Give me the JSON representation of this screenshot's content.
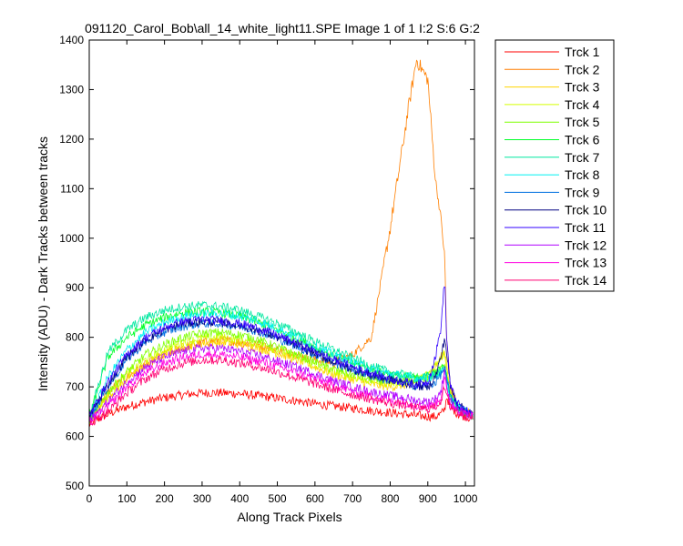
{
  "chart_data": {
    "type": "line",
    "title": "091120_Carol_Bob\\all_14_white_light11.SPE  Image 1 of 1  I:2  S:6  G:2",
    "xlabel": "Along Track Pixels",
    "ylabel": "Intensity (ADU) - Dark Tracks between tracks",
    "xlim": [
      0,
      1024
    ],
    "ylim": [
      500,
      1400
    ],
    "xticks": [
      0,
      100,
      200,
      300,
      400,
      500,
      600,
      700,
      800,
      900,
      1000
    ],
    "yticks": [
      500,
      600,
      700,
      800,
      900,
      1000,
      1100,
      1200,
      1300,
      1400
    ],
    "grid": false,
    "legend_position": "outside-right",
    "x": [
      0,
      50,
      100,
      150,
      200,
      250,
      300,
      350,
      400,
      450,
      500,
      550,
      600,
      650,
      700,
      750,
      800,
      850,
      870,
      900,
      920,
      935,
      945,
      950,
      960,
      980,
      1000,
      1024
    ],
    "series": [
      {
        "name": "Trck 1",
        "color": "#ff0000",
        "values": [
          625,
          645,
          660,
          670,
          678,
          684,
          688,
          688,
          686,
          682,
          677,
          672,
          666,
          661,
          657,
          652,
          648,
          644,
          642,
          640,
          640,
          645,
          655,
          680,
          660,
          645,
          640,
          635
        ]
      },
      {
        "name": "Trck 2",
        "color": "#ff7f00",
        "values": [
          630,
          690,
          720,
          745,
          765,
          780,
          790,
          795,
          790,
          785,
          775,
          765,
          755,
          748,
          765,
          800,
          1020,
          1270,
          1360,
          1320,
          1120,
          1040,
          960,
          800,
          700,
          660,
          650,
          640
        ]
      },
      {
        "name": "Trck 3",
        "color": "#ffd400",
        "values": [
          630,
          680,
          715,
          745,
          765,
          780,
          788,
          790,
          786,
          778,
          768,
          755,
          740,
          725,
          715,
          705,
          700,
          705,
          710,
          720,
          740,
          760,
          770,
          750,
          690,
          660,
          650,
          640
        ]
      },
      {
        "name": "Trck 4",
        "color": "#d4ff00",
        "values": [
          632,
          685,
          725,
          755,
          775,
          790,
          798,
          800,
          795,
          787,
          775,
          760,
          745,
          730,
          720,
          712,
          708,
          712,
          716,
          725,
          745,
          760,
          770,
          740,
          690,
          660,
          650,
          640
        ]
      },
      {
        "name": "Trck 5",
        "color": "#7fff00",
        "values": [
          632,
          690,
          730,
          765,
          785,
          800,
          808,
          810,
          805,
          795,
          780,
          765,
          750,
          735,
          725,
          715,
          710,
          712,
          714,
          720,
          730,
          735,
          745,
          720,
          680,
          655,
          648,
          640
        ]
      },
      {
        "name": "Trck 6",
        "color": "#00ff2a",
        "values": [
          640,
          760,
          800,
          825,
          840,
          850,
          852,
          850,
          842,
          830,
          815,
          798,
          780,
          762,
          748,
          735,
          725,
          720,
          718,
          722,
          730,
          735,
          740,
          720,
          680,
          660,
          650,
          640
        ]
      },
      {
        "name": "Trck 7",
        "color": "#00e8a0",
        "values": [
          640,
          770,
          815,
          840,
          855,
          862,
          865,
          862,
          855,
          842,
          828,
          810,
          792,
          775,
          758,
          742,
          730,
          722,
          718,
          720,
          725,
          730,
          735,
          715,
          680,
          660,
          650,
          640
        ]
      },
      {
        "name": "Trck 8",
        "color": "#00f0f0",
        "values": [
          635,
          720,
          775,
          810,
          830,
          842,
          848,
          848,
          842,
          832,
          818,
          800,
          782,
          765,
          750,
          736,
          726,
          720,
          717,
          718,
          722,
          728,
          732,
          712,
          680,
          660,
          650,
          640
        ]
      },
      {
        "name": "Trck 9",
        "color": "#0070e0",
        "values": [
          636,
          700,
          755,
          790,
          810,
          822,
          828,
          828,
          822,
          812,
          798,
          782,
          765,
          748,
          735,
          722,
          712,
          705,
          702,
          700,
          710,
          725,
          740,
          715,
          680,
          660,
          650,
          640
        ]
      },
      {
        "name": "Trck 10",
        "color": "#000080",
        "values": [
          640,
          705,
          760,
          795,
          815,
          828,
          832,
          830,
          824,
          814,
          800,
          784,
          768,
          750,
          736,
          724,
          714,
          706,
          702,
          700,
          720,
          760,
          800,
          770,
          700,
          665,
          652,
          642
        ]
      },
      {
        "name": "Trck 11",
        "color": "#3000ff",
        "values": [
          642,
          710,
          765,
          800,
          820,
          832,
          836,
          834,
          828,
          818,
          804,
          788,
          772,
          755,
          740,
          728,
          716,
          708,
          705,
          710,
          760,
          820,
          920,
          800,
          700,
          665,
          652,
          642
        ]
      },
      {
        "name": "Trck 12",
        "color": "#b000ff",
        "values": [
          630,
          670,
          710,
          740,
          760,
          772,
          778,
          778,
          772,
          764,
          752,
          740,
          726,
          712,
          700,
          690,
          682,
          676,
          672,
          670,
          676,
          690,
          740,
          700,
          670,
          655,
          648,
          640
        ]
      },
      {
        "name": "Trck 13",
        "color": "#ff00e0",
        "values": [
          628,
          660,
          700,
          728,
          748,
          760,
          766,
          765,
          760,
          752,
          741,
          729,
          716,
          703,
          691,
          681,
          673,
          667,
          663,
          661,
          665,
          680,
          720,
          690,
          665,
          652,
          646,
          638
        ]
      },
      {
        "name": "Trck 14",
        "color": "#ff0070",
        "values": [
          625,
          650,
          688,
          716,
          736,
          748,
          754,
          754,
          748,
          740,
          730,
          718,
          706,
          694,
          684,
          675,
          667,
          661,
          657,
          655,
          660,
          672,
          700,
          680,
          660,
          648,
          642,
          635
        ]
      }
    ]
  }
}
